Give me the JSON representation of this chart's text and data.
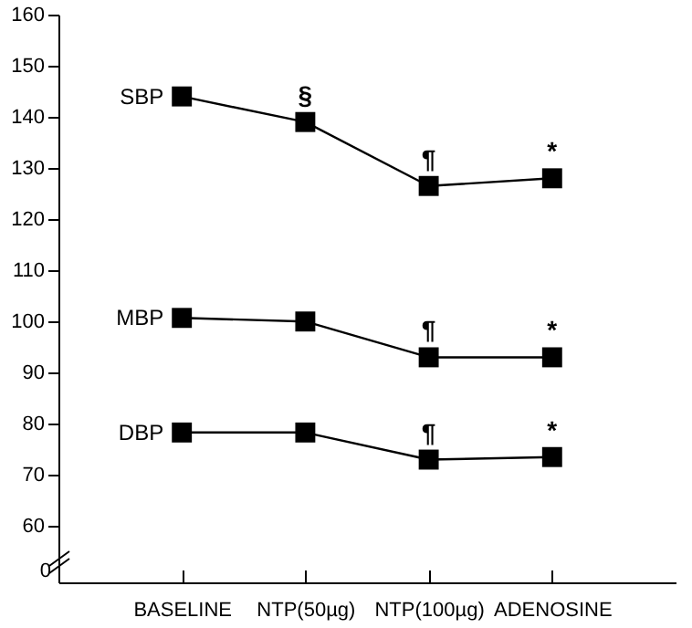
{
  "chart_data": {
    "type": "line",
    "categories": [
      "BASELINE",
      "NTP(50µg)",
      "NTP(100µg)",
      "ADENOSINE"
    ],
    "series": [
      {
        "name": "SBP",
        "color": "#000000",
        "values": [
          144,
          139,
          126.5,
          128
        ]
      },
      {
        "name": "MBP",
        "color": "#000000",
        "values": [
          100.7,
          100,
          93,
          93
        ]
      },
      {
        "name": "DBP",
        "color": "#000000",
        "values": [
          78.3,
          78.3,
          73,
          73.5
        ]
      }
    ],
    "ylim": [
      49,
      160
    ],
    "yticks": [
      60,
      70,
      80,
      90,
      100,
      110,
      120,
      130,
      140,
      150,
      160
    ],
    "annotations": [
      "0",
      {
        "text": "§",
        "x": "NTP(50µg)",
        "y": 139
      },
      {
        "text": "¶",
        "x": "NTP(100µg)",
        "y": 126.5
      },
      {
        "text": "*",
        "x": "ADENOSINE",
        "y": 128
      },
      {
        "text": "¶",
        "x": "NTP(100µg)",
        "y": 93
      },
      {
        "text": "*",
        "x": "ADENOSINE",
        "y": 93
      },
      {
        "text": "¶",
        "x": "NTP(100µg)",
        "y": 73
      },
      {
        "text": "*",
        "x": "ADENOSINE",
        "y": 73.5
      }
    ],
    "marker": "square",
    "line_style": "solid",
    "grid": false
  }
}
